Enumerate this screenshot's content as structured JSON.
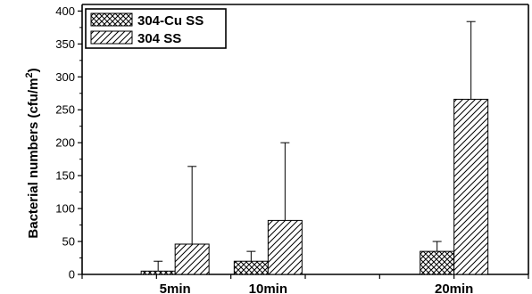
{
  "chart_data": {
    "type": "bar",
    "categories": [
      "5min",
      "10min",
      "20min"
    ],
    "x": [
      5,
      10,
      20
    ],
    "series": [
      {
        "name": "304-Cu SS",
        "values": [
          5,
          20,
          35
        ],
        "error": [
          15,
          15,
          15
        ],
        "pattern": "crosshatch"
      },
      {
        "name": "304 SS",
        "values": [
          46,
          82,
          266
        ],
        "error": [
          118,
          118,
          118
        ],
        "pattern": "diagonal"
      }
    ],
    "title": "",
    "xlabel": "",
    "ylabel": "Bacterial numbers (cfu/m",
    "ylabel_superscript": "2",
    "ylabel_close": ")",
    "ylim": [
      0,
      410
    ],
    "yticks": [
      0,
      50,
      100,
      150,
      200,
      250,
      300,
      350,
      400
    ],
    "legend_position": "top-left",
    "grid": false,
    "colors": {
      "axis": "#000000",
      "fill": "#ffffff",
      "hatch": "#000000"
    }
  }
}
